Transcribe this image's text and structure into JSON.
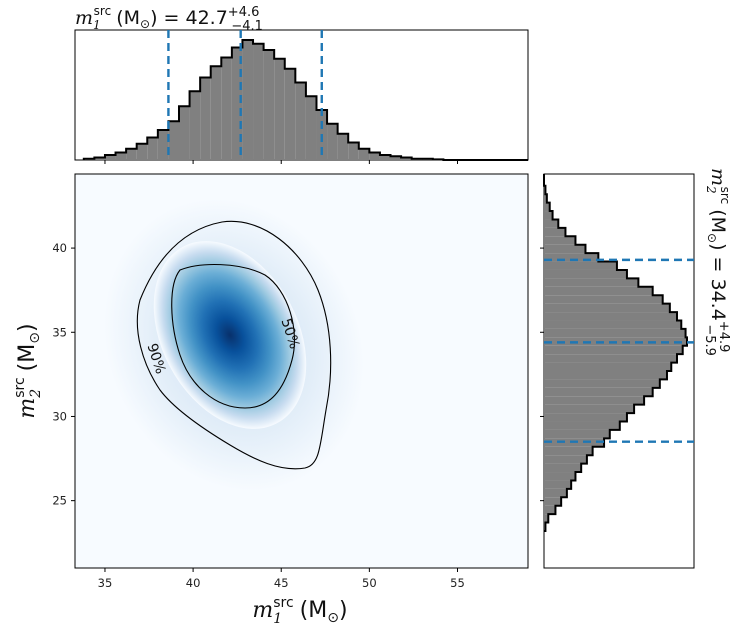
{
  "chart_data": [
    {
      "type": "area",
      "panel": "marginal-x",
      "title_main": "m",
      "title_sub": "1",
      "title_sup": "src",
      "title_unit": "(M",
      "title_unit_sub": "⊙",
      "title_value": ") = 42.7",
      "title_upper": "+4.6",
      "title_lower": "−4.1",
      "median": 42.7,
      "lower": 38.6,
      "upper": 47.3,
      "xlim": [
        33.3,
        59.0
      ],
      "histogram_bins": [
        33.8,
        34.4,
        35.0,
        35.6,
        36.2,
        36.8,
        37.4,
        38.0,
        38.6,
        39.2,
        39.8,
        40.4,
        41.0,
        41.6,
        42.2,
        42.8,
        43.4,
        44.0,
        44.6,
        45.2,
        45.8,
        46.4,
        47.0,
        47.6,
        48.2,
        48.8,
        49.4,
        50.0,
        50.6,
        51.2,
        51.8,
        52.4,
        53.0,
        53.6,
        54.2
      ],
      "histogram_values": [
        0.01,
        0.02,
        0.04,
        0.06,
        0.09,
        0.13,
        0.18,
        0.24,
        0.31,
        0.43,
        0.55,
        0.66,
        0.75,
        0.82,
        0.9,
        0.96,
        0.93,
        0.88,
        0.81,
        0.73,
        0.62,
        0.51,
        0.4,
        0.29,
        0.21,
        0.14,
        0.09,
        0.06,
        0.04,
        0.03,
        0.02,
        0.01,
        0.01,
        0.005,
        0.0
      ],
      "color": "#808080",
      "line_color": "#1f77b4"
    },
    {
      "type": "heatmap",
      "panel": "joint",
      "xlabel": "m",
      "xlabel_sub": "1",
      "xlabel_sup": "src",
      "xlabel_unit": "(M",
      "xlabel_unit_sub": "⊙",
      "xlabel_close": ")",
      "ylabel": "m",
      "ylabel_sub": "2",
      "ylabel_sup": "src",
      "ylabel_unit": "(M",
      "ylabel_unit_sub": "⊙",
      "ylabel_close": ")",
      "xticks": [
        35,
        40,
        45,
        50,
        55
      ],
      "yticks": [
        25,
        30,
        35,
        40
      ],
      "xlim": [
        33.3,
        59.0
      ],
      "ylim": [
        21.0,
        44.4
      ],
      "peak": [
        42.3,
        35.0
      ],
      "contours": [
        {
          "label": "50%",
          "level": 0.5
        },
        {
          "label": "90%",
          "level": 0.9
        }
      ],
      "colormap": "Blues"
    },
    {
      "type": "area",
      "panel": "marginal-y",
      "title_main": "m",
      "title_sub": "2",
      "title_sup": "src",
      "title_unit": "(M",
      "title_unit_sub": "⊙",
      "title_value": ") = 34.4",
      "title_upper": "+4.9",
      "title_lower": "−5.9",
      "median": 34.4,
      "lower": 28.5,
      "upper": 39.3,
      "ylim": [
        21.0,
        44.4
      ],
      "histogram_bins": [
        23.2,
        23.7,
        24.2,
        24.7,
        25.2,
        25.7,
        26.2,
        26.7,
        27.2,
        27.7,
        28.2,
        28.7,
        29.2,
        29.7,
        30.2,
        30.7,
        31.2,
        31.7,
        32.2,
        32.7,
        33.2,
        33.7,
        34.2,
        34.7,
        35.2,
        35.7,
        36.2,
        36.7,
        37.2,
        37.7,
        38.2,
        38.7,
        39.2,
        39.7,
        40.2,
        40.7,
        41.2,
        41.7,
        42.2,
        42.7,
        43.2
      ],
      "histogram_values": [
        0.01,
        0.03,
        0.08,
        0.12,
        0.16,
        0.19,
        0.22,
        0.26,
        0.3,
        0.34,
        0.42,
        0.46,
        0.53,
        0.58,
        0.63,
        0.7,
        0.76,
        0.81,
        0.86,
        0.89,
        0.93,
        0.97,
        1.0,
        0.99,
        0.96,
        0.93,
        0.88,
        0.83,
        0.76,
        0.66,
        0.58,
        0.51,
        0.38,
        0.29,
        0.22,
        0.15,
        0.1,
        0.06,
        0.04,
        0.02,
        0.01
      ],
      "color": "#808080",
      "line_color": "#1f77b4"
    }
  ]
}
